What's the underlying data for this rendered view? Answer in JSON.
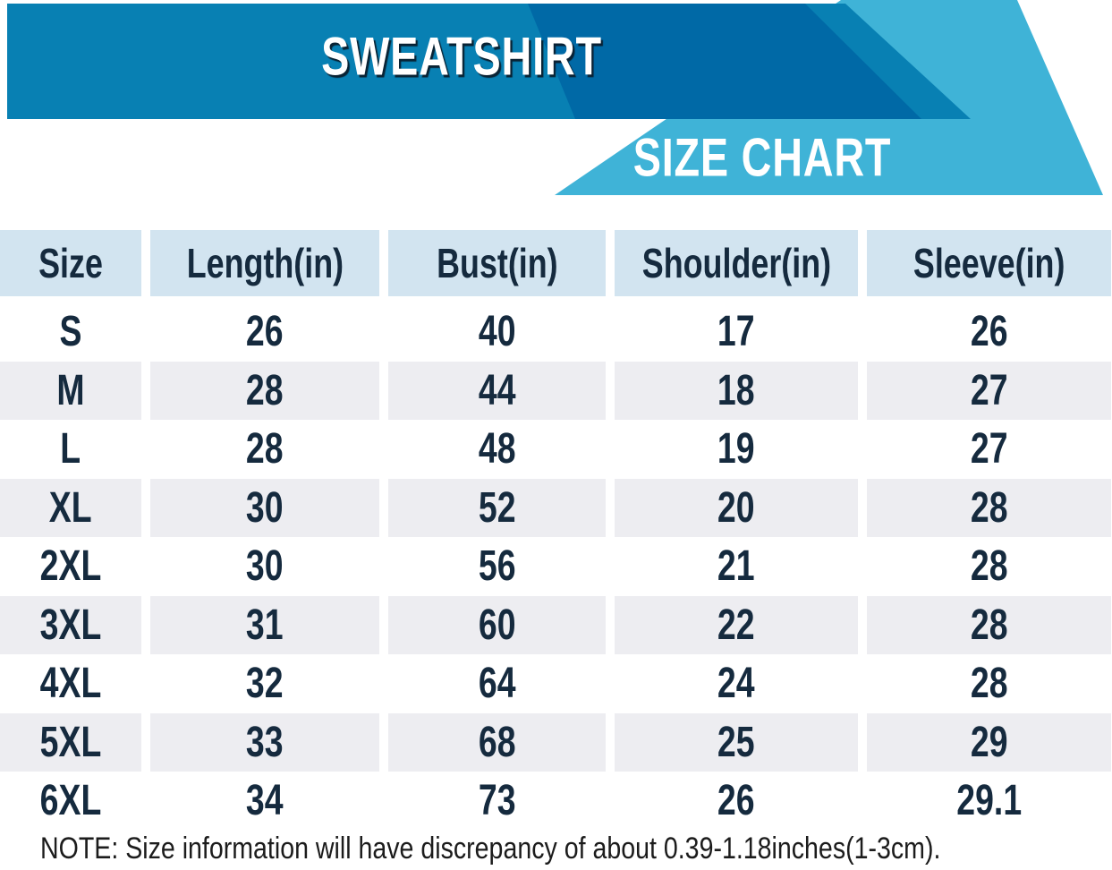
{
  "banner": {
    "product_title": "SWEATSHIRT",
    "chart_title": "SIZE CHART"
  },
  "table": {
    "columns": [
      "Size",
      "Length(in)",
      "Bust(in)",
      "Shoulder(in)",
      "Sleeve(in)"
    ],
    "rows": [
      [
        "S",
        "26",
        "40",
        "17",
        "26"
      ],
      [
        "M",
        "28",
        "44",
        "18",
        "27"
      ],
      [
        "L",
        "28",
        "48",
        "19",
        "27"
      ],
      [
        "XL",
        "30",
        "52",
        "20",
        "28"
      ],
      [
        "2XL",
        "30",
        "56",
        "21",
        "28"
      ],
      [
        "3XL",
        "31",
        "60",
        "22",
        "28"
      ],
      [
        "4XL",
        "32",
        "64",
        "24",
        "28"
      ],
      [
        "5XL",
        "33",
        "68",
        "25",
        "29"
      ],
      [
        "6XL",
        "34",
        "73",
        "26",
        "29.1"
      ]
    ]
  },
  "note": "NOTE: Size information will have discrepancy of about 0.39-1.18inches(1-3cm).",
  "colors": {
    "banner_main": "#0880B3",
    "banner_dark": "#0069A6",
    "banner_cyan": "#3FB3D7",
    "header_row_bg": "#D2E4F0",
    "alt_row_bg": "#EDEDF1",
    "cell_text": "#152A3E",
    "title_text": "#FFFFFF",
    "title_shadow": "#0A2333",
    "note_text": "#1C1C1C"
  },
  "chart_data": {
    "type": "table",
    "title": "SWEATSHIRT SIZE CHART",
    "units": "inches",
    "columns": [
      "Size",
      "Length(in)",
      "Bust(in)",
      "Shoulder(in)",
      "Sleeve(in)"
    ],
    "rows": [
      [
        "S",
        26,
        40,
        17,
        26
      ],
      [
        "M",
        28,
        44,
        18,
        27
      ],
      [
        "L",
        28,
        48,
        19,
        27
      ],
      [
        "XL",
        30,
        52,
        20,
        28
      ],
      [
        "2XL",
        30,
        56,
        21,
        28
      ],
      [
        "3XL",
        31,
        60,
        22,
        28
      ],
      [
        "4XL",
        32,
        64,
        24,
        28
      ],
      [
        "5XL",
        33,
        68,
        25,
        29
      ],
      [
        "6XL",
        34,
        73,
        26,
        29.1
      ]
    ],
    "note": "Size information will have discrepancy of about 0.39-1.18inches(1-3cm)."
  }
}
